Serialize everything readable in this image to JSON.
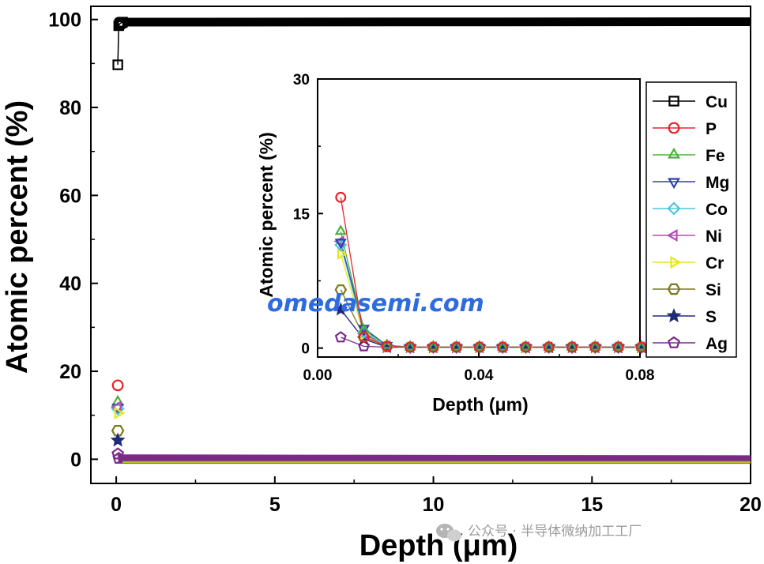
{
  "chart_data": [
    {
      "type": "scatter",
      "xlabel": "Depth (μm)",
      "ylabel": "Atomic percent (%)",
      "xlim": [
        -0.8,
        20
      ],
      "ylim": [
        -5.5,
        103
      ],
      "xticks": [
        "0",
        "5",
        "10",
        "15",
        "20"
      ],
      "yticks": [
        "0",
        "20",
        "40",
        "60",
        "80",
        "100"
      ],
      "series": [
        {
          "name": "Cu",
          "color": "#000000",
          "marker": "square",
          "points": [
            [
              0.006,
              89.7
            ],
            [
              0.012,
              98.6
            ],
            [
              0.02,
              99.0
            ],
            [
              0.05,
              99.2
            ],
            [
              0.1,
              99.3
            ],
            [
              0.2,
              99.4
            ]
          ],
          "line_to": [
            20,
            99.5
          ]
        },
        {
          "name": "P",
          "color": "#e8232a",
          "marker": "circle",
          "points": [
            [
              0.006,
              16.8
            ]
          ]
        },
        {
          "name": "Fe",
          "color": "#4caf3a",
          "marker": "triangle-up",
          "points": [
            [
              0.006,
              13.0
            ]
          ]
        },
        {
          "name": "Mg",
          "color": "#2f3fb0",
          "marker": "triangle-down",
          "points": [
            [
              0.006,
              11.8
            ]
          ]
        },
        {
          "name": "Co",
          "color": "#4fc3d9",
          "marker": "diamond",
          "points": [
            [
              0.006,
              11.5
            ]
          ]
        },
        {
          "name": "Ni",
          "color": "#b04fb3",
          "marker": "triangle-left",
          "points": [
            [
              0.006,
              11.9
            ]
          ]
        },
        {
          "name": "Cr",
          "color": "#e6e621",
          "marker": "triangle-right",
          "points": [
            [
              0.006,
              10.5
            ]
          ]
        },
        {
          "name": "Si",
          "color": "#7a7a1a",
          "marker": "hexagon",
          "points": [
            [
              0.006,
              6.5
            ]
          ]
        },
        {
          "name": "S",
          "color": "#1f2a7a",
          "marker": "star",
          "points": [
            [
              0.006,
              4.3
            ]
          ]
        },
        {
          "name": "Ag",
          "color": "#7b2a8a",
          "marker": "pentagon",
          "points": [
            [
              0.006,
              1.2
            ],
            [
              0.012,
              0.2
            ]
          ],
          "line_to": [
            20,
            0.0
          ]
        }
      ]
    },
    {
      "type": "scatter",
      "xlabel": "Depth (μm)",
      "ylabel": "Atomic percent (%)",
      "xlim": [
        0,
        0.08
      ],
      "ylim": [
        -1,
        30
      ],
      "xticks": [
        "0.00",
        "0.04",
        "0.08"
      ],
      "yticks": [
        "0",
        "15",
        "30"
      ],
      "x_samples": [
        0.00574,
        0.01148,
        0.01722,
        0.02296,
        0.0287,
        0.03444,
        0.04018,
        0.04592,
        0.05166,
        0.0574,
        0.06314,
        0.06888,
        0.07462,
        0.08036
      ],
      "series": [
        {
          "name": "Cu",
          "color": "#000000",
          "marker": "square",
          "values": []
        },
        {
          "name": "P",
          "color": "#e8232a",
          "marker": "circle",
          "values": [
            16.8,
            1.2,
            0.2,
            0.1,
            0.1,
            0.1,
            0.1,
            0.1,
            0.1,
            0.1,
            0.1,
            0.1,
            0.1,
            0.1
          ]
        },
        {
          "name": "Fe",
          "color": "#4caf3a",
          "marker": "triangle-up",
          "values": [
            13.0,
            2.0,
            0.3,
            0.1,
            0.1,
            0.1,
            0.1,
            0.1,
            0.1,
            0.1,
            0.1,
            0.1,
            0.1,
            0.1
          ]
        },
        {
          "name": "Mg",
          "color": "#2f3fb0",
          "marker": "triangle-down",
          "values": [
            11.8,
            2.2,
            0.3,
            0.1,
            0.1,
            0.1,
            0.1,
            0.1,
            0.1,
            0.1,
            0.1,
            0.1,
            0.1,
            0.1
          ]
        },
        {
          "name": "Co",
          "color": "#4fc3d9",
          "marker": "diamond",
          "values": [
            11.5,
            1.8,
            0.2,
            0.1,
            0.1,
            0.1,
            0.1,
            0.1,
            0.1,
            0.1,
            0.1,
            0.1,
            0.1,
            0.1
          ]
        },
        {
          "name": "Ni",
          "color": "#b04fb3",
          "marker": "triangle-left",
          "values": [
            11.9,
            1.6,
            0.2,
            0.1,
            0.1,
            0.1,
            0.1,
            0.1,
            0.1,
            0.1,
            0.1,
            0.1,
            0.1,
            0.1
          ]
        },
        {
          "name": "Cr",
          "color": "#e6e621",
          "marker": "triangle-right",
          "values": [
            10.5,
            1.5,
            0.2,
            0.1,
            0.1,
            0.1,
            0.1,
            0.1,
            0.1,
            0.1,
            0.1,
            0.1,
            0.1,
            0.1
          ]
        },
        {
          "name": "Si",
          "color": "#7a7a1a",
          "marker": "hexagon",
          "values": [
            6.5,
            1.3,
            0.2,
            0.1,
            0.1,
            0.1,
            0.1,
            0.1,
            0.1,
            0.1,
            0.1,
            0.1,
            0.1,
            0.1
          ]
        },
        {
          "name": "S",
          "color": "#1f2a7a",
          "marker": "star",
          "values": [
            4.3,
            1.0,
            0.1,
            0.1,
            0.1,
            0.1,
            0.1,
            0.1,
            0.1,
            0.1,
            0.1,
            0.1,
            0.1,
            0.1
          ]
        },
        {
          "name": "Ag",
          "color": "#7b2a8a",
          "marker": "pentagon",
          "values": [
            1.2,
            0.2,
            0.1,
            0.1,
            0.1,
            0.1,
            0.1,
            0.1,
            0.1,
            0.1,
            0.1,
            0.1,
            0.1,
            0.1
          ]
        }
      ]
    }
  ],
  "legend": [
    "Cu",
    "P",
    "Fe",
    "Mg",
    "Co",
    "Ni",
    "Cr",
    "Si",
    "S",
    "Ag"
  ],
  "watermark": "omedasemi.com",
  "wechat_caption": "公众号 · 半导体微纳加工工厂"
}
